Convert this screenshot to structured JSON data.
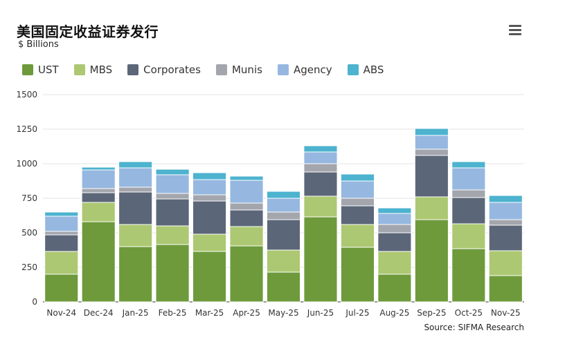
{
  "title": "美国固定收益证券发行",
  "subtitle": "$ Billions",
  "source": "Source: SIFMA Research",
  "menu_icon": "hamburger-menu-icon",
  "chart_data": {
    "type": "bar",
    "stacked": true,
    "categories": [
      "Nov-24",
      "Dec-24",
      "Jan-25",
      "Feb-25",
      "Mar-25",
      "Apr-25",
      "May-25",
      "Jun-25",
      "Jul-25",
      "Aug-25",
      "Sep-25",
      "Oct-25",
      "Nov-25"
    ],
    "ylim": [
      0,
      1500
    ],
    "yticks": [
      0,
      250,
      500,
      750,
      1000,
      1250,
      1500
    ],
    "grid": true,
    "legend_position": "top-left",
    "series": [
      {
        "name": "UST",
        "color": "#6e9a3c",
        "values": [
          200,
          580,
          400,
          415,
          365,
          405,
          215,
          615,
          395,
          200,
          595,
          385,
          190
        ]
      },
      {
        "name": "MBS",
        "color": "#acc872",
        "values": [
          165,
          140,
          160,
          135,
          125,
          140,
          160,
          150,
          165,
          165,
          165,
          180,
          180
        ]
      },
      {
        "name": "Corporates",
        "color": "#5b6778",
        "values": [
          120,
          70,
          235,
          195,
          240,
          120,
          220,
          175,
          135,
          135,
          300,
          190,
          185
        ]
      },
      {
        "name": "Munis",
        "color": "#a4a6ae",
        "values": [
          25,
          30,
          35,
          40,
          45,
          50,
          55,
          60,
          55,
          60,
          45,
          55,
          40
        ]
      },
      {
        "name": "Agency",
        "color": "#96b8e0",
        "values": [
          110,
          135,
          140,
          135,
          110,
          165,
          100,
          85,
          125,
          80,
          100,
          160,
          125
        ]
      },
      {
        "name": "ABS",
        "color": "#4db3cf",
        "values": [
          30,
          20,
          45,
          40,
          50,
          30,
          50,
          45,
          50,
          40,
          50,
          45,
          50
        ]
      }
    ]
  }
}
